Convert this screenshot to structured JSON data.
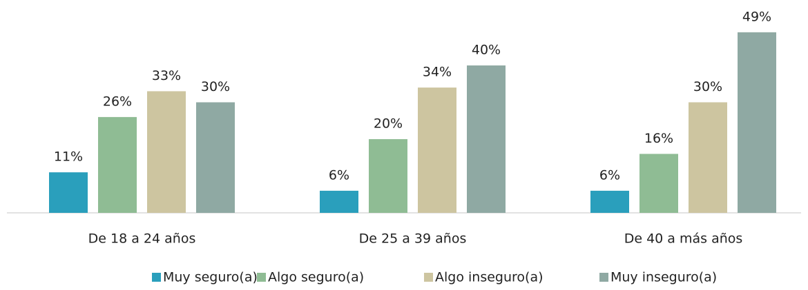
{
  "chart_data": {
    "type": "bar",
    "categories": [
      "De 18 a 24 años",
      "De 25 a 39 años",
      "De 40 a más años"
    ],
    "series": [
      {
        "name": "Muy seguro(a)",
        "color": "#2a9fbc",
        "values": [
          11,
          6,
          6
        ],
        "value_labels": [
          "11%",
          "6%",
          "6%"
        ]
      },
      {
        "name": "Algo seguro(a)",
        "color": "#8fbc94",
        "values": [
          26,
          20,
          16
        ],
        "value_labels": [
          "26%",
          "20%",
          "16%"
        ]
      },
      {
        "name": "Algo inseguro(a)",
        "color": "#cdc5a0",
        "values": [
          33,
          34,
          30
        ],
        "value_labels": [
          "33%",
          "34%",
          "30%"
        ]
      },
      {
        "name": "Muy inseguro(a)",
        "color": "#8fa9a3",
        "values": [
          30,
          40,
          49
        ],
        "value_labels": [
          "30%",
          "40%",
          "49%"
        ]
      }
    ],
    "legend": "bottom"
  }
}
